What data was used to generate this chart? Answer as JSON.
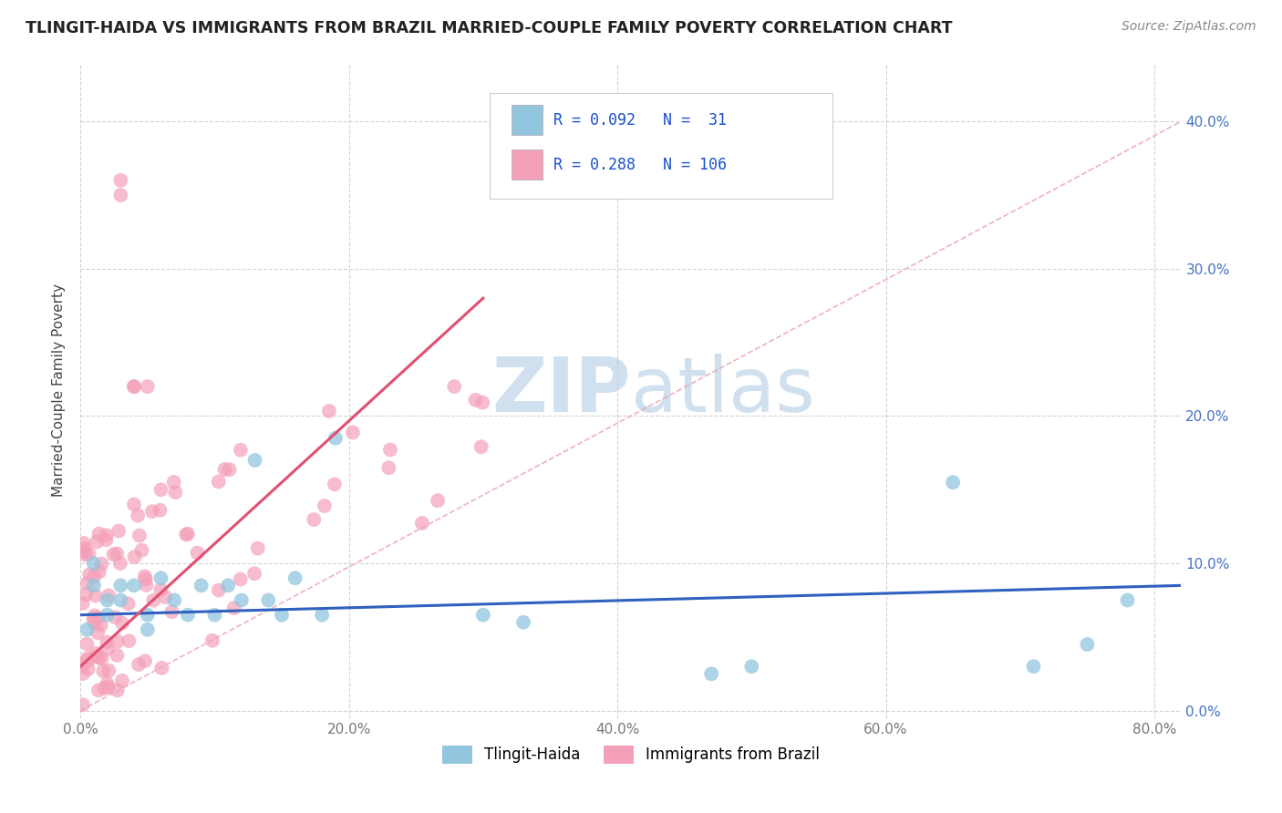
{
  "title": "TLINGIT-HAIDA VS IMMIGRANTS FROM BRAZIL MARRIED-COUPLE FAMILY POVERTY CORRELATION CHART",
  "source": "Source: ZipAtlas.com",
  "ylabel": "Married-Couple Family Poverty",
  "R1": 0.092,
  "N1": 31,
  "R2": 0.288,
  "N2": 106,
  "color1": "#92c5de",
  "color2": "#f4a0b8",
  "trendline_color1": "#3060c0",
  "trendline_color2": "#e05070",
  "dashed_color": "#e8a0b0",
  "watermark_color": "#d0e0ee",
  "background_color": "#ffffff",
  "grid_color": "#c8c8c8",
  "legend_label1": "Tlingit-Haida",
  "legend_label2": "Immigrants from Brazil",
  "xlim": [
    0.0,
    0.82
  ],
  "ylim": [
    -0.005,
    0.44
  ],
  "xticks": [
    0.0,
    0.2,
    0.4,
    0.6,
    0.8
  ],
  "yticks": [
    0.0,
    0.1,
    0.2,
    0.3,
    0.4
  ],
  "xticklabels": [
    "0.0%",
    "20.0%",
    "40.0%",
    "60.0%",
    "80.0%"
  ],
  "yticklabels_right": [
    "0.0%",
    "10.0%",
    "20.0%",
    "30.0%",
    "40.0%"
  ]
}
